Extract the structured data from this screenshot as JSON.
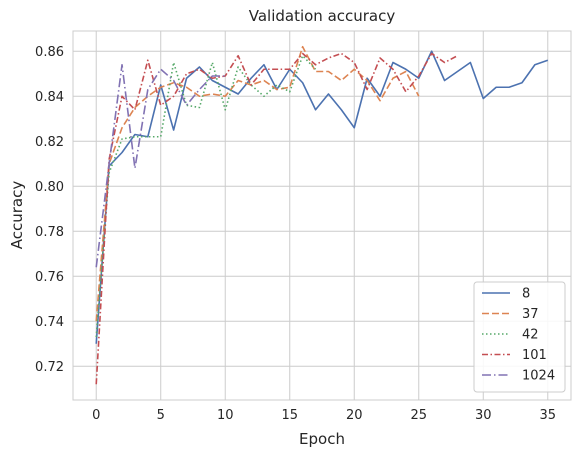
{
  "chart_data": {
    "type": "line",
    "title": "Validation accuracy",
    "xlabel": "Epoch",
    "ylabel": "Accuracy",
    "xlim": [
      -1.8,
      36.8
    ],
    "ylim": [
      0.705,
      0.869
    ],
    "xticks": [
      0,
      5,
      10,
      15,
      20,
      25,
      30,
      35
    ],
    "yticks": [
      0.72,
      0.74,
      0.76,
      0.78,
      0.8,
      0.82,
      0.84,
      0.86
    ],
    "grid": true,
    "legend": "lower-right",
    "series": [
      {
        "name": "8",
        "color": "#4c72b0",
        "dash": "solid",
        "values": [
          0.73,
          0.809,
          0.815,
          0.823,
          0.822,
          0.845,
          0.825,
          0.848,
          0.853,
          0.847,
          0.844,
          0.841,
          0.848,
          0.854,
          0.843,
          0.852,
          0.846,
          0.834,
          0.841,
          0.834,
          0.826,
          0.848,
          0.84,
          0.855,
          0.852,
          0.848,
          0.86,
          0.847,
          0.851,
          0.855,
          0.839,
          0.844,
          0.844,
          0.846,
          0.854,
          0.856
        ]
      },
      {
        "name": "37",
        "color": "#dd8452",
        "dash": "dashed",
        "values": [
          0.74,
          0.81,
          0.826,
          0.835,
          0.84,
          0.844,
          0.846,
          0.844,
          0.84,
          0.841,
          0.84,
          0.847,
          0.845,
          0.847,
          0.843,
          0.844,
          0.862,
          0.851,
          0.851,
          0.847,
          0.852,
          0.847,
          0.838,
          0.848,
          0.851,
          0.84
        ]
      },
      {
        "name": "42",
        "color": "#55a868",
        "dash": "dotted",
        "values": [
          0.733,
          0.806,
          0.821,
          0.822,
          0.822,
          0.822,
          0.855,
          0.836,
          0.835,
          0.855,
          0.834,
          0.853,
          0.845,
          0.84,
          0.845,
          0.842,
          0.858,
          0.852
        ]
      },
      {
        "name": "101",
        "color": "#c44e52",
        "dash": "dashdot",
        "values": [
          0.712,
          0.812,
          0.84,
          0.834,
          0.856,
          0.836,
          0.84,
          0.85,
          0.852,
          0.848,
          0.849,
          0.858,
          0.845,
          0.852,
          0.852,
          0.852,
          0.859,
          0.854,
          0.857,
          0.859,
          0.855,
          0.843,
          0.857,
          0.852,
          0.842,
          0.849,
          0.859,
          0.855,
          0.858
        ]
      },
      {
        "name": "1024",
        "color": "#8172b3",
        "dash": "longdashdot",
        "values": [
          0.764,
          0.81,
          0.854,
          0.808,
          0.843,
          0.852,
          0.847,
          0.836,
          0.843,
          0.849,
          0.849
        ]
      }
    ]
  }
}
